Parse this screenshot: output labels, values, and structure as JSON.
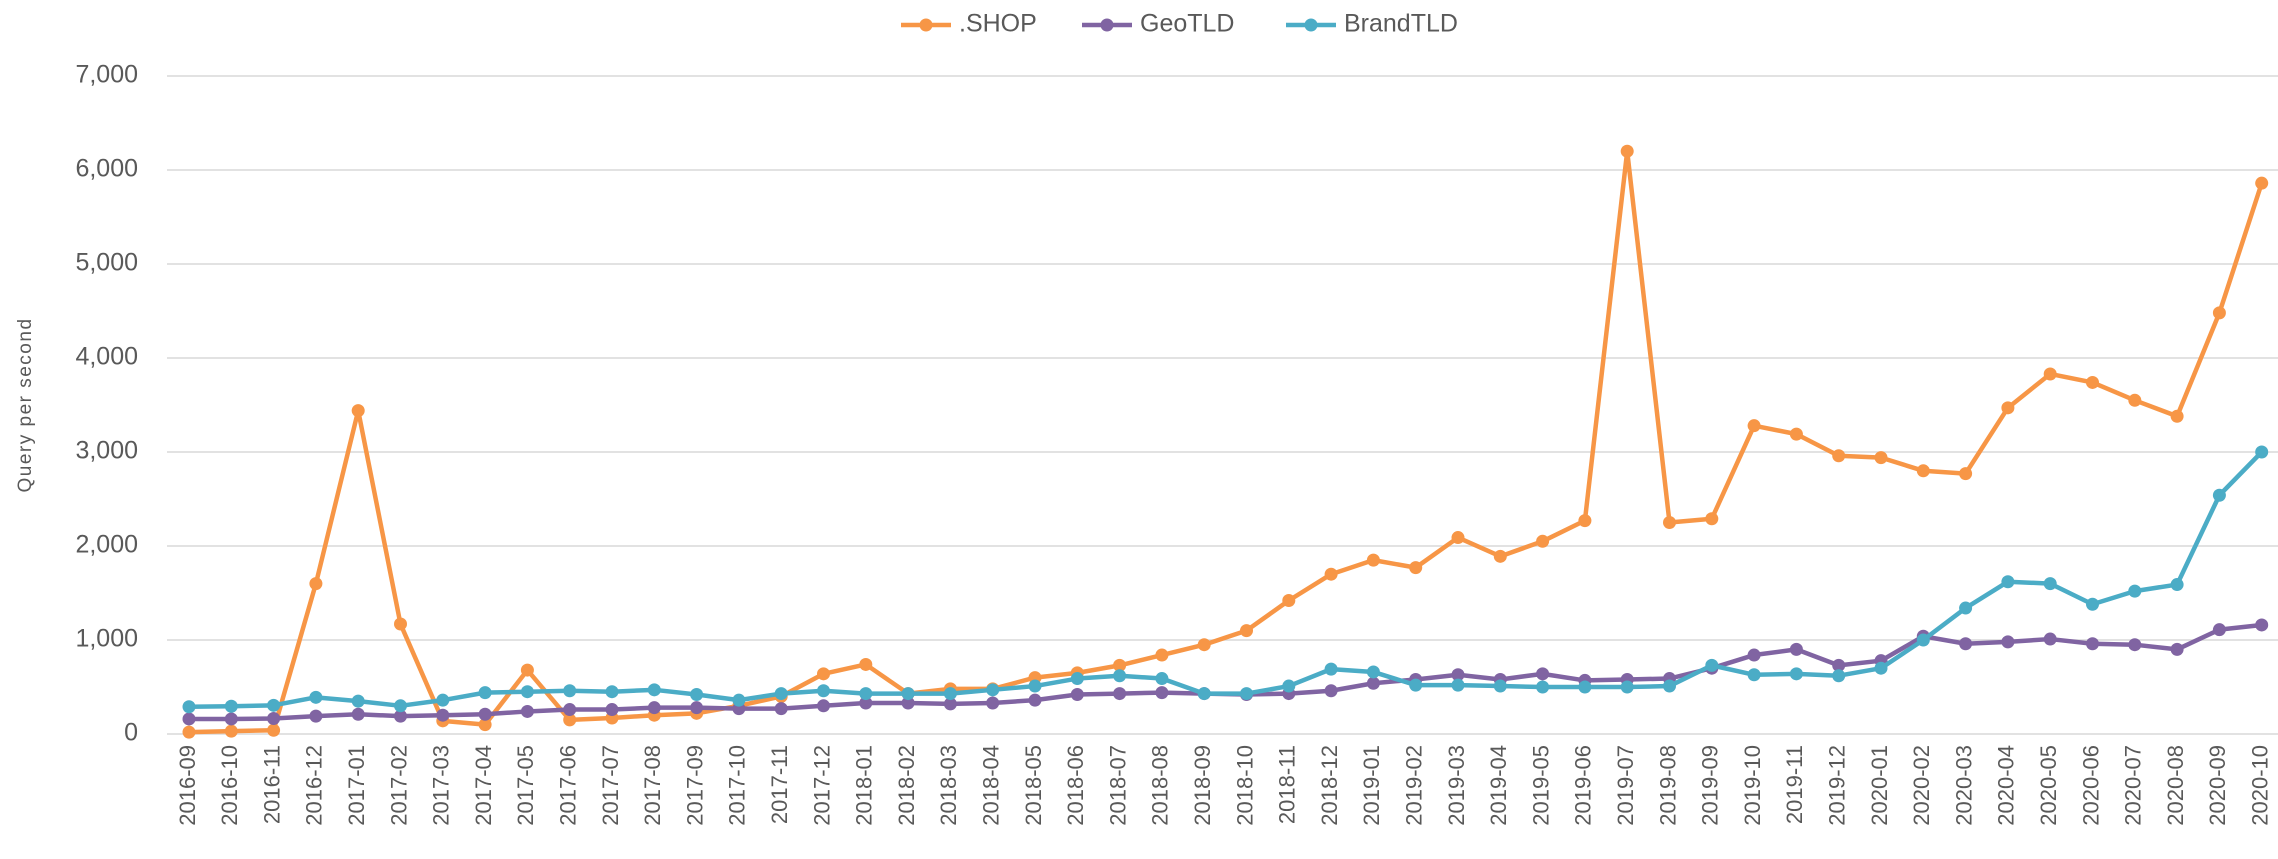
{
  "chart_data": {
    "type": "line",
    "y_label": "Query per second",
    "categories": [
      "2016-09",
      "2016-10",
      "2016-11",
      "2016-12",
      "2017-01",
      "2017-02",
      "2017-03",
      "2017-04",
      "2017-05",
      "2017-06",
      "2017-07",
      "2017-08",
      "2017-09",
      "2017-10",
      "2017-11",
      "2017-12",
      "2018-01",
      "2018-02",
      "2018-03",
      "2018-04",
      "2018-05",
      "2018-06",
      "2018-07",
      "2018-08",
      "2018-09",
      "2018-10",
      "2018-11",
      "2018-12",
      "2019-01",
      "2019-02",
      "2019-03",
      "2019-04",
      "2019-05",
      "2019-06",
      "2019-07",
      "2019-08",
      "2019-09",
      "2019-10",
      "2019-11",
      "2019-12",
      "2020-01",
      "2020-02",
      "2020-03",
      "2020-04",
      "2020-05",
      "2020-06",
      "2020-07",
      "2020-08",
      "2020-09",
      "2020-10"
    ],
    "series": [
      {
        "name": ".SHOP",
        "color": "#f79646",
        "values": [
          20,
          30,
          40,
          1600,
          3440,
          1170,
          140,
          100,
          680,
          150,
          170,
          200,
          220,
          300,
          400,
          640,
          740,
          430,
          480,
          480,
          600,
          650,
          730,
          840,
          950,
          1100,
          1420,
          1700,
          1850,
          1770,
          2090,
          1890,
          2050,
          2270,
          6200,
          2250,
          2290,
          3280,
          3190,
          2960,
          2940,
          2800,
          2770,
          3470,
          3830,
          3740,
          3550,
          3380,
          4480,
          5860
        ]
      },
      {
        "name": "GeoTLD",
        "color": "#8064a2",
        "values": [
          160,
          160,
          165,
          190,
          210,
          190,
          200,
          210,
          240,
          260,
          260,
          280,
          280,
          270,
          270,
          300,
          330,
          330,
          320,
          330,
          360,
          420,
          430,
          440,
          430,
          420,
          430,
          460,
          540,
          580,
          630,
          580,
          640,
          570,
          580,
          590,
          700,
          840,
          900,
          730,
          780,
          1040,
          960,
          980,
          1010,
          960,
          950,
          900,
          1110,
          1160
        ]
      },
      {
        "name": "BrandTLD",
        "color": "#4bacc6",
        "values": [
          290,
          295,
          305,
          390,
          350,
          300,
          360,
          440,
          450,
          460,
          450,
          470,
          420,
          360,
          430,
          460,
          430,
          430,
          430,
          470,
          510,
          590,
          620,
          590,
          430,
          430,
          510,
          690,
          660,
          520,
          520,
          510,
          500,
          500,
          500,
          510,
          730,
          630,
          640,
          620,
          700,
          1000,
          1340,
          1620,
          1600,
          1380,
          1520,
          1590,
          2540,
          3000
        ]
      }
    ],
    "ylim": [
      0,
      7000
    ],
    "yticks": [
      0,
      {
        "value": 1000,
        "label": "1,000"
      },
      {
        "value": 2000,
        "label": "2,000"
      },
      {
        "value": 3000,
        "label": "3,000"
      },
      {
        "value": 4000,
        "label": "4,000"
      },
      {
        "value": 5000,
        "label": "5,000"
      },
      {
        "value": 6000,
        "label": "6,000"
      },
      {
        "value": 7000,
        "label": "7,000"
      }
    ],
    "grid": true,
    "legend": "top"
  }
}
